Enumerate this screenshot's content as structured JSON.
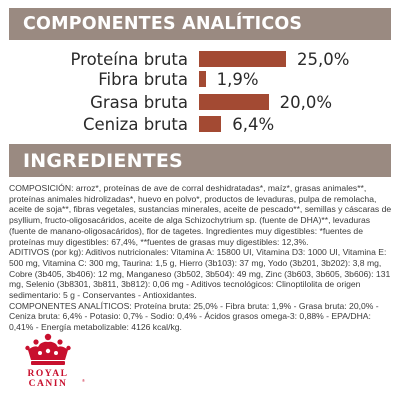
{
  "analytics": {
    "title": "COMPONENTES ANALÍTICOS",
    "rows": [
      {
        "label": "Proteína bruta",
        "value_text": "25,0%",
        "value": 25.0
      },
      {
        "label": "Fibra bruta",
        "value_text": "1,9%",
        "value": 1.9
      },
      {
        "label": "Grasa bruta",
        "value_text": "20,0%",
        "value": 20.0
      },
      {
        "label": "Ceniza bruta",
        "value_text": "6,4%",
        "value": 6.4
      }
    ]
  },
  "chart_data": {
    "type": "bar",
    "categories": [
      "Proteína bruta",
      "Fibra bruta",
      "Grasa bruta",
      "Ceniza bruta"
    ],
    "values": [
      25.0,
      1.9,
      20.0,
      6.4
    ],
    "data_labels": [
      "25,0%",
      "1,9%",
      "20,0%",
      "6,4%"
    ],
    "title": "COMPONENTES ANALÍTICOS",
    "xlabel": "",
    "ylabel": "",
    "orientation": "horizontal",
    "bar_color": "#a34a33",
    "grid": false
  },
  "ingredients": {
    "title": "INGREDIENTES",
    "composition": "COMPOSICIÓN: arroz*, proteínas de ave de corral deshidratadas*, maíz*, grasas animales**, proteínas animales hidrolizadas*, huevo en polvo*, productos de levaduras, pulpa de remolacha, aceite de soja**, fibras vegetales, sustancias minerales, aceite de pescado**, semillas y cáscaras de psyllium, fructo-oligosacáridos, aceite de alga Schizochytrium sp. (fuente de DHA)**, levaduras (fuente de manano-oligosacáridos), flor de tagetes. Ingredientes muy digestibles: *fuentes de proteínas muy digestibles: 67,4%, **fuentes de grasas muy digestibles: 12,3%.",
    "additives": "ADITIVOS (por kg): Aditivos nutricionales: Vitamina A: 15800 UI, Vitamina D3: 1000 UI, Vitamina E: 500 mg, Vitamina C: 300 mg, Taurina: 1,5 g, Hierro (3b103): 37 mg, Yodo (3b201, 3b202): 3,8 mg, Cobre (3b405, 3b406): 12 mg, Manganeso (3b502, 3b504): 49 mg, Zinc (3b603, 3b605, 3b606): 131 mg, Selenio (3b8301, 3b811, 3b812): 0,06 mg - Aditivos tecnológicos: Clinoptilolita de origen sedimentario: 5 g - Conservantes - Antioxidantes.",
    "analytical": "COMPONENTES ANALÍTICOS: Proteína bruta: 25,0% - Fibra bruta: 1,9% - Grasa bruta: 20,0% - Ceniza bruta: 6,4% - Potasio: 0,7% - Sodio: 0,4% - Ácidos grasos omega-3: 0,88% - EPA/DHA: 0,41% - Energía metabolizable: 4126 kcal/kg."
  },
  "logo": {
    "line1": "ROYAL",
    "line2": "CANIN",
    "mark": "®"
  },
  "colors": {
    "banner_bg": "#9a8a81",
    "bar": "#a34a33",
    "logo_red": "#c8102e"
  }
}
